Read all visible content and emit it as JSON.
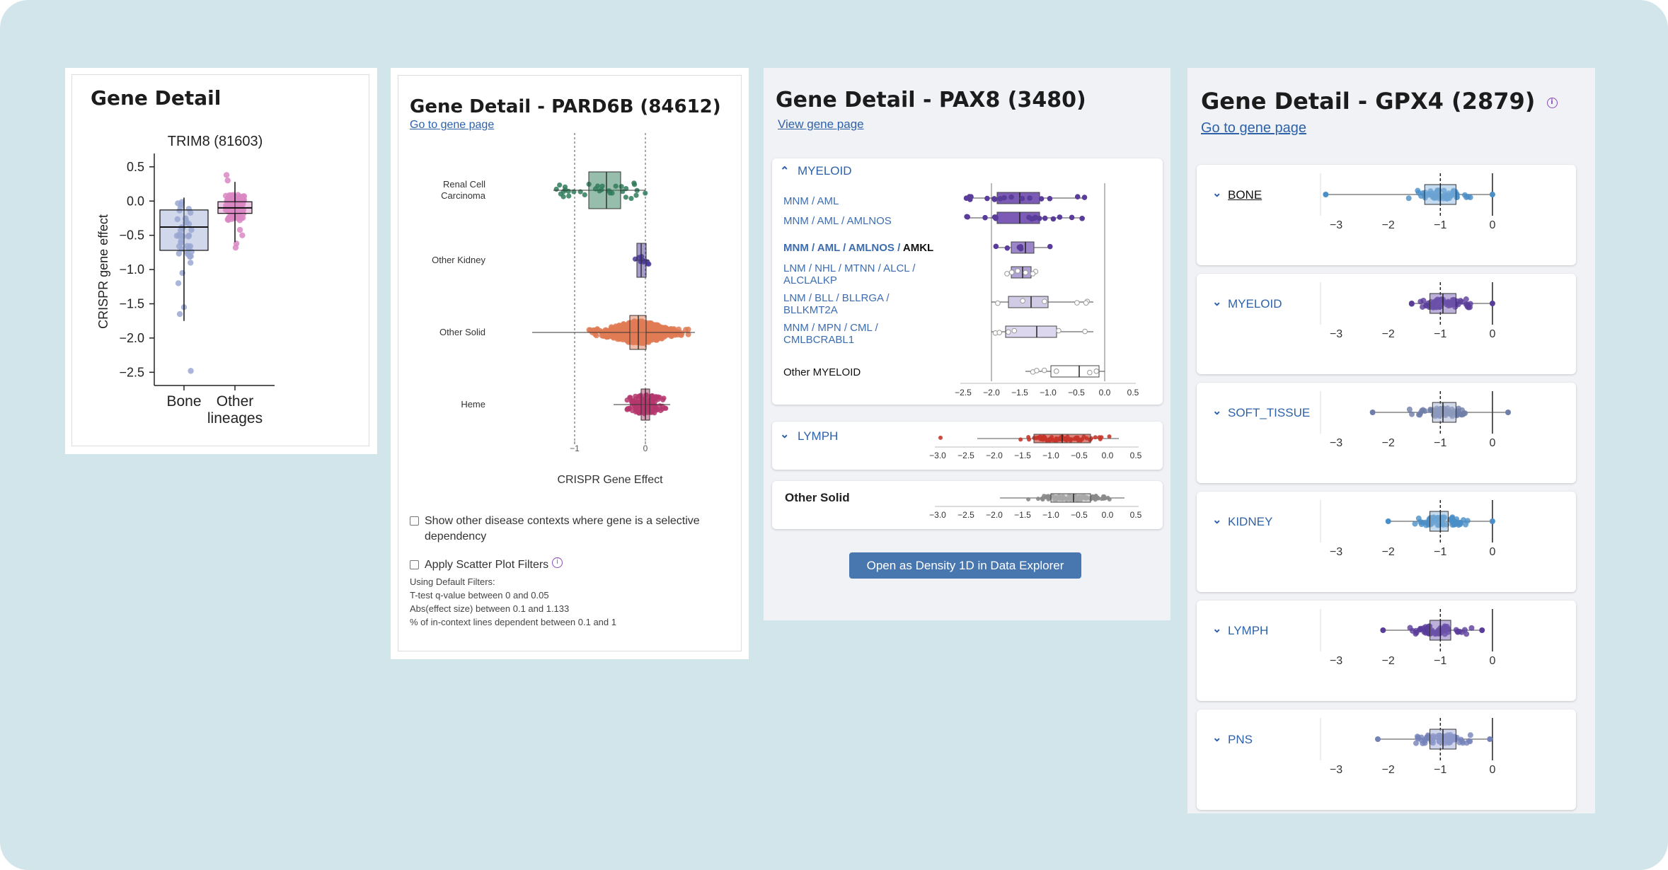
{
  "colors": {
    "background": "#d2e5ea",
    "link": "#2e62a8",
    "bone": "#4a8fc7",
    "myeloid_purple": "#5a3c9a",
    "lymph_red": "#c7362a",
    "trim8_bone": "#9aa8d2",
    "trim8_other": "#d987c3",
    "pard6b_renal": "#2f7c5b",
    "pard6b_kidney": "#4b3a9c",
    "pard6b_solid": "#e07b55",
    "pard6b_heme": "#b5376d",
    "gpx4_soft": "#6f7ea8",
    "gpx4_pns": "#7482ba"
  },
  "panel1": {
    "title": "Gene Detail",
    "chart_data": {
      "type": "box",
      "title": "TRIM8 (81603)",
      "xlabel": "",
      "ylabel": "CRISPR gene effect",
      "ylim": [
        -2.6,
        0.55
      ],
      "yticks": [
        "0.5",
        "0.0",
        "−0.5",
        "−1.0",
        "−1.5",
        "−2.0",
        "−2.5"
      ],
      "ytick_values": [
        0.5,
        0.0,
        -0.5,
        -1.0,
        -1.5,
        -2.0,
        -2.5
      ],
      "categories": [
        "Bone",
        "Other lineages"
      ],
      "category_lines": [
        [
          "Bone"
        ],
        [
          "Other",
          "lineages"
        ]
      ],
      "boxes": [
        {
          "q1": -0.72,
          "median": -0.38,
          "q3": -0.13,
          "wmin": -1.75,
          "wmax": 0.05
        },
        {
          "q1": -0.18,
          "median": -0.1,
          "q3": -0.01,
          "wmin": -0.6,
          "wmax": 0.28
        }
      ]
    }
  },
  "panel2": {
    "title": "Gene Detail - PARD6B (84612)",
    "link": "Go to gene page",
    "chart_data": {
      "type": "box",
      "xlabel": "CRISPR Gene Effect",
      "xlim": [
        -1.65,
        0.75
      ],
      "xticks": [
        "−1",
        "0"
      ],
      "xtick_values": [
        -1,
        0
      ],
      "categories": [
        "Renal Cell Carcinoma",
        "Other Kidney",
        "Other Solid",
        "Heme"
      ],
      "category_lines": [
        [
          "Renal Cell",
          "Carcinoma"
        ],
        [
          "Other Kidney"
        ],
        [
          "Other Solid"
        ],
        [
          "Heme"
        ]
      ],
      "boxes": [
        {
          "q1": -0.8,
          "median": -0.55,
          "q3": -0.35,
          "wmin": -1.3,
          "wmax": 0.0
        },
        {
          "q1": -0.12,
          "median": -0.06,
          "q3": 0.01,
          "wmin": -0.15,
          "wmax": 0.05
        },
        {
          "q1": -0.22,
          "median": -0.1,
          "q3": 0.01,
          "wmin": -1.6,
          "wmax": 0.7
        },
        {
          "q1": -0.06,
          "median": 0.0,
          "q3": 0.06,
          "wmin": -0.45,
          "wmax": 0.35
        }
      ]
    },
    "checkbox1": "Show other disease contexts where gene is a selective dependency",
    "checkbox1_lines": [
      "Show other disease contexts where gene is a selective",
      "dependency"
    ],
    "checkbox2": "Apply Scatter Plot Filters",
    "filters_title": "Using Default Filters:",
    "filters": [
      "T-test q-value between 0 and 0.05",
      "Abs(effect size) between 0.1 and 1.133",
      "% of in-context lines dependent between 0.1 and 1"
    ]
  },
  "panel3": {
    "title": "Gene Detail - PAX8 (3480)",
    "link": "View gene page",
    "myeloid_label": "MYELOID",
    "myeloid_rows": [
      {
        "lines": [
          "MNM / AML"
        ],
        "bold": ""
      },
      {
        "lines": [
          "MNM / AML / AMLNOS"
        ],
        "bold": ""
      },
      {
        "lines": [
          "MNM / AML / AMLNOS /"
        ],
        "bold": "AMKL"
      },
      {
        "lines": [
          "LNM / NHL / MTNN / ALCL /",
          "ALCLALKP"
        ],
        "bold": ""
      },
      {
        "lines": [
          "LNM / BLL / BLLRGA /",
          "BLLKMT2A"
        ],
        "bold": ""
      },
      {
        "lines": [
          "MNM / MPN / CML /",
          "CMLBCRABL1"
        ],
        "bold": ""
      }
    ],
    "other_myeloid": "Other MYELOID",
    "lymph_label": "LYMPH",
    "other_solid": "Other Solid",
    "button": "Open as Density 1D in Data Explorer",
    "chart_data": {
      "type": "box",
      "xlim": [
        -2.55,
        0.55
      ],
      "xticks": [
        "−2.5",
        "−2.0",
        "−1.5",
        "−1.0",
        "−0.5",
        "0.0",
        "0.5"
      ],
      "xtick_values": [
        -2.5,
        -2.0,
        -1.5,
        -1.0,
        -0.5,
        0.0,
        0.5
      ],
      "xticks_long": [
        "−3.0",
        "−2.5",
        "−2.0",
        "−1.5",
        "−1.0",
        "−0.5",
        "0.0",
        "0.5"
      ],
      "xtick_values_long": [
        -3.0,
        -2.5,
        -2.0,
        -1.5,
        -1.0,
        -0.5,
        0.0,
        0.5
      ],
      "myeloid_boxes": [
        {
          "q1": -1.9,
          "median": -1.5,
          "q3": -1.15,
          "wmin": -2.45,
          "wmax": -0.35
        },
        {
          "q1": -1.9,
          "median": -1.5,
          "q3": -1.15,
          "wmin": -2.45,
          "wmax": -0.35
        },
        {
          "q1": -1.65,
          "median": -1.4,
          "q3": -1.25,
          "wmin": -1.95,
          "wmax": -0.95
        },
        {
          "q1": -1.65,
          "median": -1.45,
          "q3": -1.3,
          "wmin": -1.75,
          "wmax": -1.2
        },
        {
          "q1": -1.7,
          "median": -1.3,
          "q3": -1.0,
          "wmin": -2.0,
          "wmax": -0.2
        },
        {
          "q1": -1.75,
          "median": -1.2,
          "q3": -0.85,
          "wmin": -2.0,
          "wmax": -0.2
        },
        {
          "q1": -0.95,
          "median": -0.45,
          "q3": -0.1,
          "wmin": -1.4,
          "wmax": 0.0
        }
      ],
      "lymph_box": {
        "q1": -1.3,
        "median": -0.8,
        "q3": -0.3,
        "wmin": -2.3,
        "wmax": 0.2
      },
      "solid_box": {
        "q1": -1.0,
        "median": -0.6,
        "q3": -0.3,
        "wmin": -1.9,
        "wmax": 0.3
      }
    }
  },
  "panel4": {
    "title": "Gene Detail - GPX4 (2879)",
    "link": "Go to gene page",
    "chart_data": {
      "type": "box",
      "xlim": [
        -3.3,
        0.3
      ],
      "xticks": [
        "−3",
        "−2",
        "−1",
        "0"
      ],
      "xtick_values": [
        -3,
        -2,
        -1,
        0
      ],
      "reference_line": -1,
      "lineages": [
        {
          "name": "BONE",
          "q1": -1.3,
          "median": -1.0,
          "q3": -0.7,
          "wmin": -3.2,
          "wmax": 0.0
        },
        {
          "name": "MYELOID",
          "q1": -1.2,
          "median": -0.95,
          "q3": -0.7,
          "wmin": -1.55,
          "wmax": 0.0
        },
        {
          "name": "SOFT_TISSUE",
          "q1": -1.15,
          "median": -0.95,
          "q3": -0.7,
          "wmin": -2.3,
          "wmax": 0.3
        },
        {
          "name": "KIDNEY",
          "q1": -1.2,
          "median": -1.0,
          "q3": -0.85,
          "wmin": -2.0,
          "wmax": 0.0
        },
        {
          "name": "LYMPH",
          "q1": -1.2,
          "median": -1.0,
          "q3": -0.8,
          "wmin": -2.1,
          "wmax": -0.2
        },
        {
          "name": "PNS",
          "q1": -1.2,
          "median": -0.95,
          "q3": -0.7,
          "wmin": -2.2,
          "wmax": -0.05
        }
      ]
    }
  }
}
